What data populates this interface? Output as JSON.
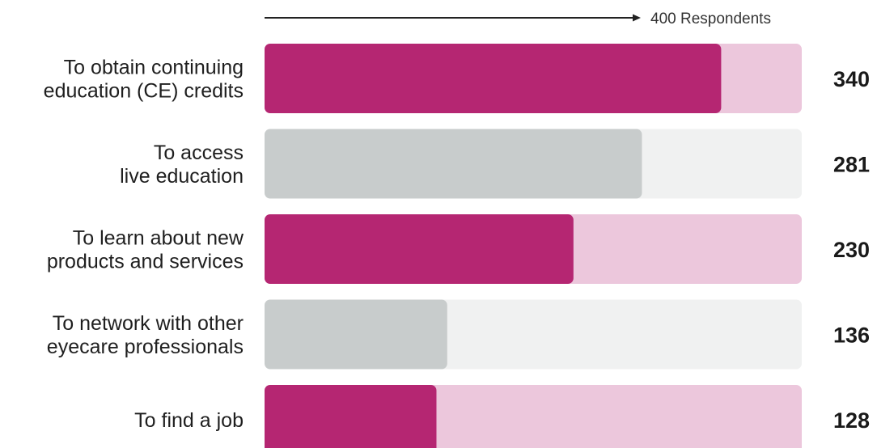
{
  "chart_data": {
    "type": "bar",
    "orientation": "horizontal",
    "scale": {
      "max": 400,
      "label": "400 Respondents"
    },
    "categories": [
      [
        "To obtain continuing",
        "education (CE) credits"
      ],
      [
        "To access",
        "live education"
      ],
      [
        "To learn about new",
        "products and services"
      ],
      [
        "To network with other",
        "eyecare professionals"
      ],
      [
        "To find a job"
      ]
    ],
    "values": [
      340,
      281,
      230,
      136,
      128
    ],
    "value_labels": [
      "340",
      "281",
      "230",
      "136",
      "128"
    ],
    "colors": {
      "highlight_fill": "#b52672",
      "highlight_track": "#ecc7dc",
      "muted_fill": "#c8cccc",
      "muted_track": "#f0f1f1"
    },
    "bar_styles": [
      "highlight",
      "muted",
      "highlight",
      "muted",
      "highlight"
    ]
  }
}
